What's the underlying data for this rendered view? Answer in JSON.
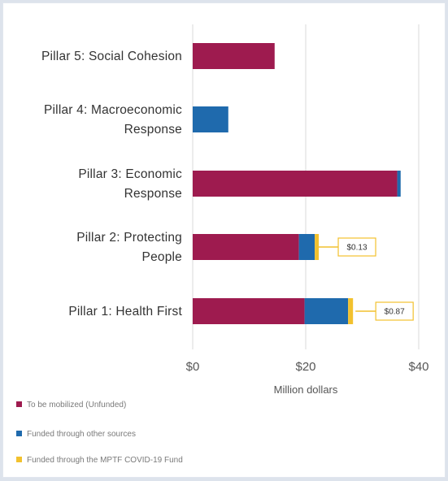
{
  "chart_data": {
    "type": "bar",
    "orientation": "horizontal",
    "stacked": true,
    "categories": [
      [
        "Pillar 5: Social Cohesion"
      ],
      [
        "Pillar 4: Macroeconomic",
        "Response"
      ],
      [
        "Pillar 3: Economic",
        "Response"
      ],
      [
        "Pillar 2: Protecting",
        "People"
      ],
      [
        "Pillar 1: Health First"
      ]
    ],
    "series": [
      {
        "name": "To be mobilized (Unfunded)",
        "color": "#9e1b4f",
        "values": [
          14.5,
          0,
          36.2,
          18.8,
          19.8
        ]
      },
      {
        "name": "Funded through other sources",
        "color": "#1f6aad",
        "values": [
          0,
          6.3,
          0.6,
          2.8,
          7.7
        ]
      },
      {
        "name": "Funded through the MPTF COVID-19 Fund",
        "color": "#f2c12e",
        "values": [
          0,
          0,
          0,
          0.13,
          0.87
        ]
      }
    ],
    "annotations": [
      {
        "category_index": 3,
        "text": "$0.13"
      },
      {
        "category_index": 4,
        "text": "$0.87"
      }
    ],
    "xlim": [
      0,
      40
    ],
    "xticks": [
      0,
      20,
      40
    ],
    "xtick_labels": [
      "$0",
      "$20",
      "$40"
    ],
    "xlabel": "Million dollars",
    "grid": "vertical",
    "legend_position": "bottom-left"
  }
}
